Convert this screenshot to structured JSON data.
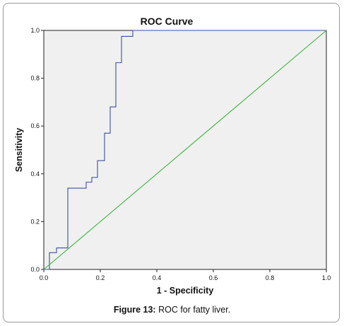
{
  "caption": {
    "label": "Figure 13:",
    "text": "ROC for fatty liver."
  },
  "colors": {
    "roc_curve": "#3a4fa6",
    "reference_line": "#3cb43c",
    "plot_background": "#f0f0f0"
  },
  "chart_data": {
    "type": "line",
    "title": "ROC Curve",
    "xlabel": "1 - Specificity",
    "ylabel": "Sensitivity",
    "xlim": [
      0.0,
      1.0
    ],
    "ylim": [
      0.0,
      1.0
    ],
    "x_ticks": [
      "0.0",
      "0.2",
      "0.4",
      "0.6",
      "0.8",
      "1.0"
    ],
    "y_ticks": [
      "0.0",
      "0.2",
      "0.4",
      "0.6",
      "0.8",
      "1.0"
    ],
    "grid": false,
    "legend": "none",
    "series": [
      {
        "step": true,
        "points": [
          [
            0.0,
            0.0
          ],
          [
            0.02,
            0.0
          ],
          [
            0.02,
            0.07
          ],
          [
            0.045,
            0.07
          ],
          [
            0.045,
            0.09
          ],
          [
            0.085,
            0.09
          ],
          [
            0.085,
            0.34
          ],
          [
            0.15,
            0.34
          ],
          [
            0.15,
            0.365
          ],
          [
            0.17,
            0.365
          ],
          [
            0.17,
            0.385
          ],
          [
            0.19,
            0.385
          ],
          [
            0.19,
            0.455
          ],
          [
            0.215,
            0.455
          ],
          [
            0.215,
            0.57
          ],
          [
            0.235,
            0.57
          ],
          [
            0.235,
            0.68
          ],
          [
            0.255,
            0.68
          ],
          [
            0.255,
            0.865
          ],
          [
            0.275,
            0.865
          ],
          [
            0.275,
            0.975
          ],
          [
            0.315,
            0.975
          ],
          [
            0.315,
            1.0
          ],
          [
            1.0,
            1.0
          ]
        ]
      },
      {
        "points": [
          [
            0.0,
            0.0
          ],
          [
            1.0,
            1.0
          ]
        ]
      }
    ]
  }
}
